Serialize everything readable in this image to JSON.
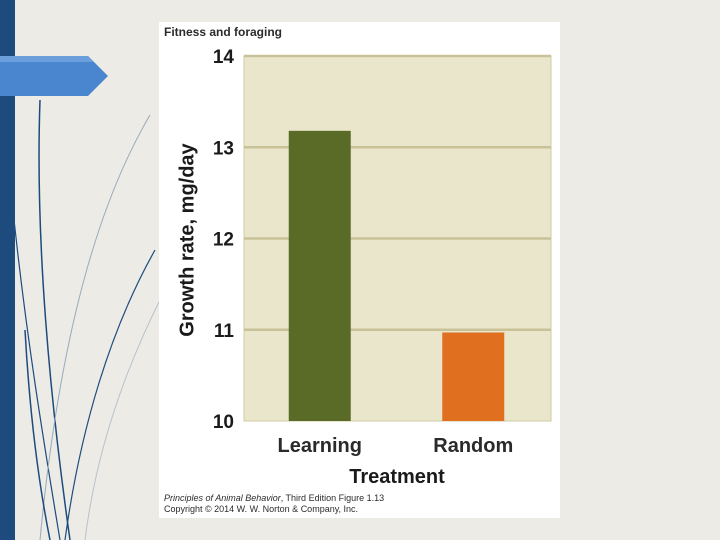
{
  "slide": {
    "sidebar_color": "#1e4b7e",
    "arrow_color": "#4a86cf"
  },
  "figure": {
    "title": "Fitness and foraging",
    "credit_book": "Principles of Animal Behavior",
    "credit_rest": ", Third Edition  Figure 1.13",
    "credit_line2": "Copyright © 2014 W. W. Norton & Company, Inc."
  },
  "chart_data": {
    "type": "bar",
    "title": "Fitness and foraging",
    "xlabel": "Treatment",
    "ylabel": "Growth rate, mg/day",
    "categories": [
      "Learning",
      "Random"
    ],
    "values": [
      13.18,
      10.97
    ],
    "colors": [
      "#5a6b28",
      "#e07020"
    ],
    "ylim": [
      10,
      14
    ],
    "yticks": [
      10,
      11,
      12,
      13,
      14
    ],
    "plot_background": "#e9e6cc",
    "grid": true
  }
}
